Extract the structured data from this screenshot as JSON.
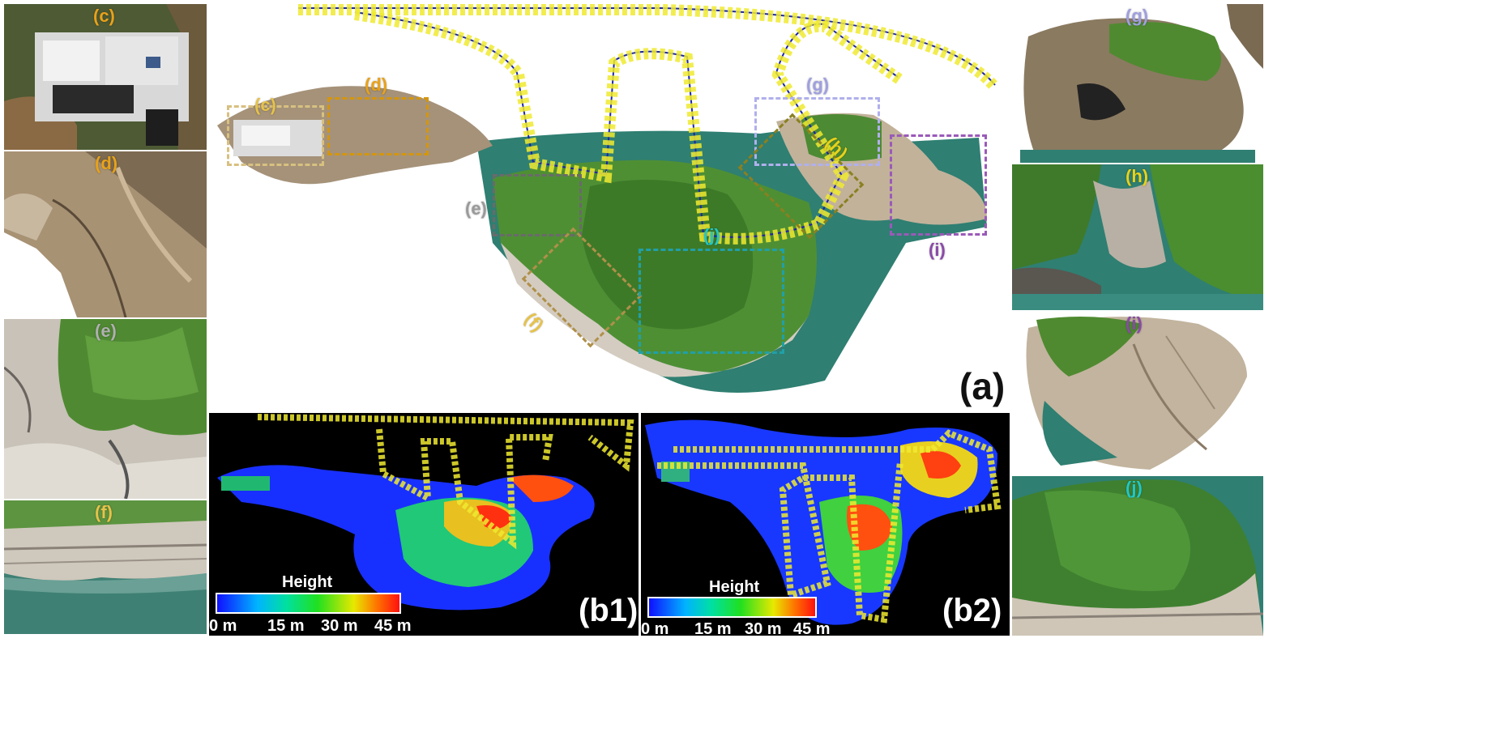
{
  "panels": {
    "a": {
      "label": "(a)"
    },
    "b1": {
      "label": "(b1)"
    },
    "b2": {
      "label": "(b2)"
    },
    "c": {
      "label": "(c)",
      "color": "#e8a21a"
    },
    "d": {
      "label": "(d)",
      "color": "#e8a21a"
    },
    "e": {
      "label": "(e)",
      "color": "#b0b0b0"
    },
    "f": {
      "label": "(f)",
      "color": "#e6c24a"
    },
    "g": {
      "label": "(g)",
      "color": "#9f9fe0"
    },
    "h": {
      "label": "(h)",
      "color": "#e8d21a"
    },
    "i": {
      "label": "(i)",
      "color": "#8a4aa8"
    },
    "j": {
      "label": "(j)",
      "color": "#20c8c8"
    }
  },
  "overview_labels": {
    "c": "(c)",
    "d": "(d)",
    "e": "(e)",
    "f": "(f)",
    "g": "(g)",
    "h": "(h)",
    "i": "(i)",
    "j": "(j)"
  },
  "colorbar": {
    "title": "Height",
    "ticks": [
      "0 m",
      "15 m",
      "30 m",
      "45 m"
    ]
  }
}
